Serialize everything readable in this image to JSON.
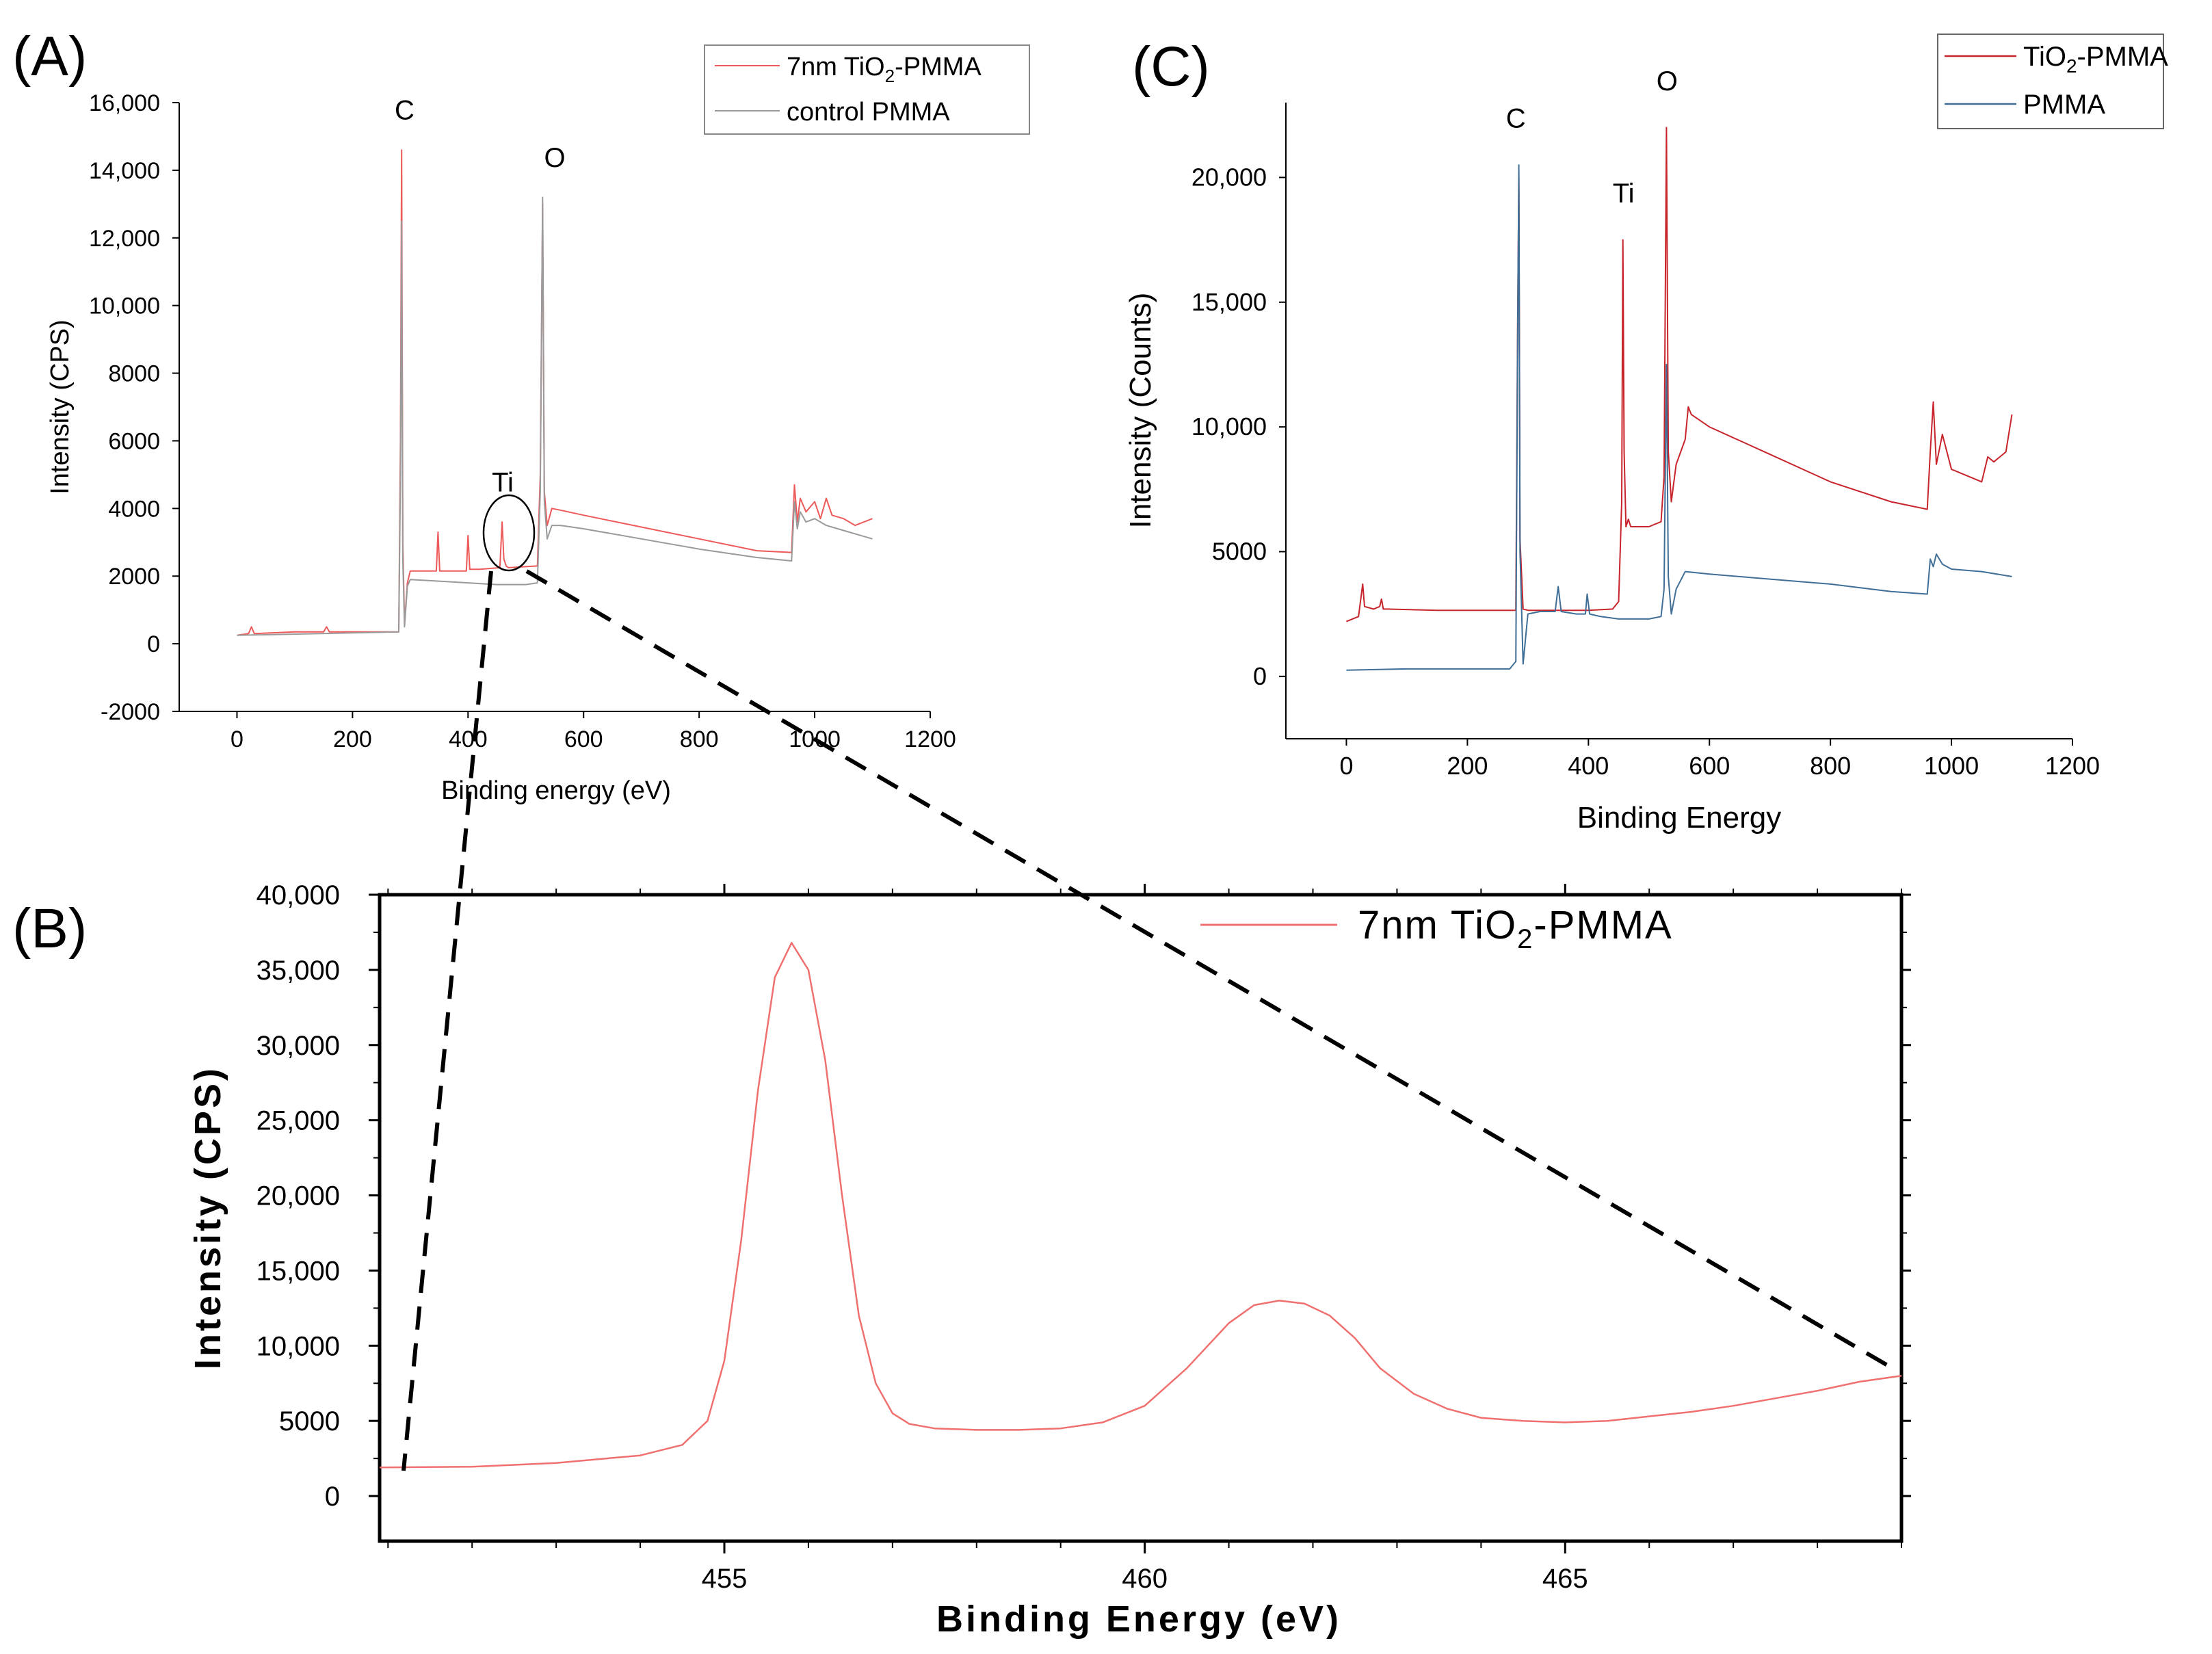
{
  "figure": {
    "background": "#ffffff"
  },
  "colors": {
    "tio2_a": "#ee5a5a",
    "pmma_a": "#9a9a9a",
    "tio2_c": "#c8242b",
    "pmma_c": "#3f6e96",
    "tio2_b": "#f07070"
  },
  "chart_data": [
    {
      "panel": "(A)",
      "type": "line",
      "title": "",
      "xlabel": "Binding energy (eV)",
      "ylabel": "Intensity (CPS)",
      "xlim": [
        -100,
        1200
      ],
      "ylim": [
        -2000,
        16000
      ],
      "xticks": [
        0,
        200,
        400,
        600,
        800,
        1000,
        1200
      ],
      "xtick_labels": [
        "0",
        "200",
        "400",
        "600",
        "800",
        "1000",
        "1200"
      ],
      "yticks": [
        -2000,
        0,
        2000,
        4000,
        6000,
        8000,
        10000,
        12000,
        14000,
        16000
      ],
      "ytick_labels": [
        "-2000",
        "0",
        "2000",
        "4000",
        "6000",
        "8000",
        "10,000",
        "12,000",
        "14,000",
        "16,000"
      ],
      "legend_position": "top-right",
      "annotations": [
        {
          "text": "C",
          "x": 290,
          "y": 15500
        },
        {
          "text": "O",
          "x": 550,
          "y": 14100
        },
        {
          "text": "Ti",
          "x": 460,
          "y": 4500
        }
      ],
      "series": [
        {
          "name": "7nm TiO2-PMMA",
          "legend_text": "7nm TiO",
          "legend_sub": "2",
          "legend_rest": "-PMMA",
          "color": "#ee5a5a",
          "x": [
            0,
            20,
            25,
            30,
            100,
            150,
            155,
            160,
            280,
            283,
            285,
            287,
            290,
            295,
            300,
            320,
            345,
            348,
            351,
            380,
            397,
            400,
            403,
            420,
            455,
            459,
            462,
            466,
            470,
            520,
            525,
            529,
            532,
            537,
            545,
            560,
            600,
            700,
            800,
            900,
            960,
            965,
            970,
            975,
            985,
            1000,
            1010,
            1020,
            1030,
            1050,
            1070,
            1100
          ],
          "y": [
            250,
            300,
            500,
            300,
            350,
            350,
            500,
            350,
            350,
            6000,
            14600,
            3000,
            600,
            1800,
            2150,
            2150,
            2150,
            3300,
            2150,
            2150,
            2150,
            3200,
            2200,
            2200,
            2250,
            3600,
            2500,
            2300,
            2250,
            2300,
            5000,
            13000,
            4500,
            3500,
            4000,
            3950,
            3800,
            3450,
            3100,
            2750,
            2700,
            4700,
            3600,
            4300,
            3900,
            4200,
            3700,
            4300,
            3800,
            3700,
            3500,
            3700
          ]
        },
        {
          "name": "control PMMA",
          "legend_text": "control PMMA",
          "color": "#9a9a9a",
          "x": [
            0,
            280,
            283,
            285,
            287,
            290,
            295,
            300,
            350,
            400,
            450,
            500,
            520,
            525,
            529,
            532,
            537,
            545,
            560,
            600,
            700,
            800,
            900,
            960,
            965,
            970,
            975,
            985,
            1000,
            1020,
            1050,
            1100
          ],
          "y": [
            250,
            350,
            5000,
            12500,
            2500,
            500,
            1700,
            1900,
            1850,
            1800,
            1750,
            1750,
            1800,
            4500,
            13200,
            4200,
            3100,
            3500,
            3500,
            3400,
            3100,
            2800,
            2550,
            2450,
            4200,
            3400,
            3900,
            3600,
            3700,
            3500,
            3350,
            3100
          ]
        }
      ]
    },
    {
      "panel": "(B)",
      "type": "line",
      "title": "",
      "xlabel": "Binding Energy (eV)",
      "ylabel": "Intensity (CPS)",
      "xlim": [
        450.9,
        469.0
      ],
      "ylim": [
        -3000,
        40000
      ],
      "xticks": [
        455,
        460,
        465
      ],
      "xtick_labels": [
        "455",
        "460",
        "465"
      ],
      "yticks": [
        0,
        5000,
        10000,
        15000,
        20000,
        25000,
        30000,
        35000,
        40000
      ],
      "ytick_labels": [
        "0",
        "5000",
        "10,000",
        "15,000",
        "20,000",
        "25,000",
        "30,000",
        "35,000",
        "40,000"
      ],
      "legend_position": "top-right",
      "series": [
        {
          "name": "7nm TiO2-PMMA",
          "legend_text": "7nm TiO",
          "legend_sub": "2",
          "legend_rest": "-PMMA",
          "color": "#f07070",
          "x": [
            450.9,
            452,
            453,
            454,
            454.5,
            454.8,
            455.0,
            455.2,
            455.4,
            455.6,
            455.8,
            456.0,
            456.2,
            456.4,
            456.6,
            456.8,
            457.0,
            457.2,
            457.5,
            458,
            458.5,
            459,
            459.5,
            460,
            460.5,
            461,
            461.3,
            461.6,
            461.9,
            462.2,
            462.5,
            462.8,
            463.2,
            463.6,
            464,
            464.5,
            465,
            465.5,
            466,
            466.5,
            467,
            467.5,
            468,
            468.5,
            469
          ],
          "y": [
            1900,
            1950,
            2200,
            2700,
            3400,
            5000,
            9000,
            17000,
            27000,
            34500,
            36800,
            35000,
            29000,
            20000,
            12000,
            7500,
            5500,
            4800,
            4500,
            4400,
            4400,
            4500,
            4900,
            6000,
            8500,
            11500,
            12700,
            13000,
            12800,
            12000,
            10500,
            8500,
            6800,
            5800,
            5200,
            5000,
            4900,
            5000,
            5300,
            5600,
            6000,
            6500,
            7000,
            7600,
            8000
          ]
        }
      ]
    },
    {
      "panel": "(C)",
      "type": "line",
      "title": "",
      "xlabel": "Binding Energy",
      "ylabel": "Intensity (Counts)",
      "xlim": [
        -100,
        1200
      ],
      "ylim": [
        -2500,
        23000
      ],
      "xticks": [
        0,
        200,
        400,
        600,
        800,
        1000,
        1200
      ],
      "xtick_labels": [
        "0",
        "200",
        "400",
        "600",
        "800",
        "1000",
        "1200"
      ],
      "yticks": [
        0,
        5000,
        10000,
        15000,
        20000
      ],
      "ytick_labels": [
        "0",
        "5000",
        "10,000",
        "15,000",
        "20,000"
      ],
      "legend_position": "top-right",
      "annotations": [
        {
          "text": "C",
          "x": 280,
          "y": 22000
        },
        {
          "text": "Ti",
          "x": 458,
          "y": 19000
        },
        {
          "text": "O",
          "x": 530,
          "y": 23500
        }
      ],
      "series": [
        {
          "name": "TiO2-PMMA",
          "legend_text": "TiO",
          "legend_sub": "2",
          "legend_rest": "-PMMA",
          "color": "#c8242b",
          "x": [
            0,
            20,
            27,
            30,
            45,
            55,
            58,
            61,
            70,
            150,
            280,
            283,
            285,
            287,
            292,
            300,
            400,
            440,
            450,
            455,
            457,
            459,
            462,
            466,
            470,
            500,
            520,
            525,
            529,
            532,
            537,
            545,
            560,
            565,
            570,
            600,
            700,
            800,
            900,
            960,
            965,
            970,
            975,
            985,
            1000,
            1030,
            1050,
            1060,
            1070,
            1090,
            1100
          ],
          "y": [
            2200,
            2400,
            3700,
            2800,
            2700,
            2800,
            3100,
            2700,
            2700,
            2650,
            2650,
            14000,
            20000,
            5500,
            2700,
            2650,
            2650,
            2700,
            3000,
            7000,
            17500,
            9000,
            6000,
            6300,
            6000,
            6000,
            6200,
            8000,
            22000,
            9000,
            7000,
            8500,
            9500,
            10800,
            10500,
            10000,
            8900,
            7800,
            7000,
            6700,
            9000,
            11000,
            8500,
            9700,
            8300,
            8000,
            7800,
            8800,
            8600,
            9000,
            10500
          ]
        },
        {
          "name": "PMMA",
          "legend_text": "PMMA",
          "color": "#3f6e96",
          "x": [
            0,
            100,
            200,
            270,
            280,
            283,
            285,
            287,
            292,
            300,
            320,
            345,
            350,
            355,
            380,
            395,
            398,
            402,
            420,
            450,
            500,
            520,
            525,
            529,
            532,
            537,
            545,
            560,
            600,
            700,
            800,
            900,
            960,
            965,
            970,
            975,
            985,
            1000,
            1050,
            1100
          ],
          "y": [
            250,
            300,
            300,
            300,
            600,
            13500,
            20500,
            5000,
            500,
            2500,
            2600,
            2600,
            3600,
            2600,
            2500,
            2500,
            3300,
            2500,
            2400,
            2300,
            2300,
            2400,
            3500,
            12500,
            4000,
            2500,
            3500,
            4200,
            4100,
            3900,
            3700,
            3400,
            3300,
            4700,
            4400,
            4900,
            4500,
            4300,
            4200,
            4000
          ]
        }
      ]
    }
  ]
}
